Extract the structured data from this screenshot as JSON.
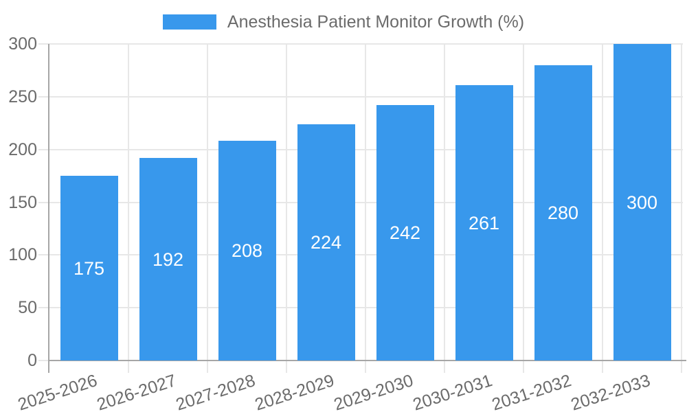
{
  "chart_data": {
    "type": "bar",
    "title": "",
    "legend": {
      "label": "Anesthesia Patient Monitor Growth (%)",
      "position": "top"
    },
    "categories": [
      "2025-2026",
      "2026-2027",
      "2027-2028",
      "2028-2029",
      "2029-2030",
      "2030-2031",
      "2031-2032",
      "2032-2033"
    ],
    "series": [
      {
        "name": "Anesthesia Patient Monitor Growth (%)",
        "values": [
          175,
          192,
          208,
          224,
          242,
          261,
          280,
          300
        ]
      }
    ],
    "values": [
      175,
      192,
      208,
      224,
      242,
      261,
      280,
      300
    ],
    "value_labels_shown": true,
    "xlabel": "",
    "ylabel": "",
    "ylim": [
      0,
      300
    ],
    "yticks": [
      0,
      50,
      100,
      150,
      200,
      250,
      300
    ],
    "grid": true,
    "x_tick_rotation_deg": -18,
    "colors": {
      "bar": "#3898ec",
      "bar_label": "#ffffff",
      "text": "#6b6b6b",
      "grid": "#e7e7e7",
      "axis": "#a6a6a6",
      "background": "#ffffff"
    }
  }
}
